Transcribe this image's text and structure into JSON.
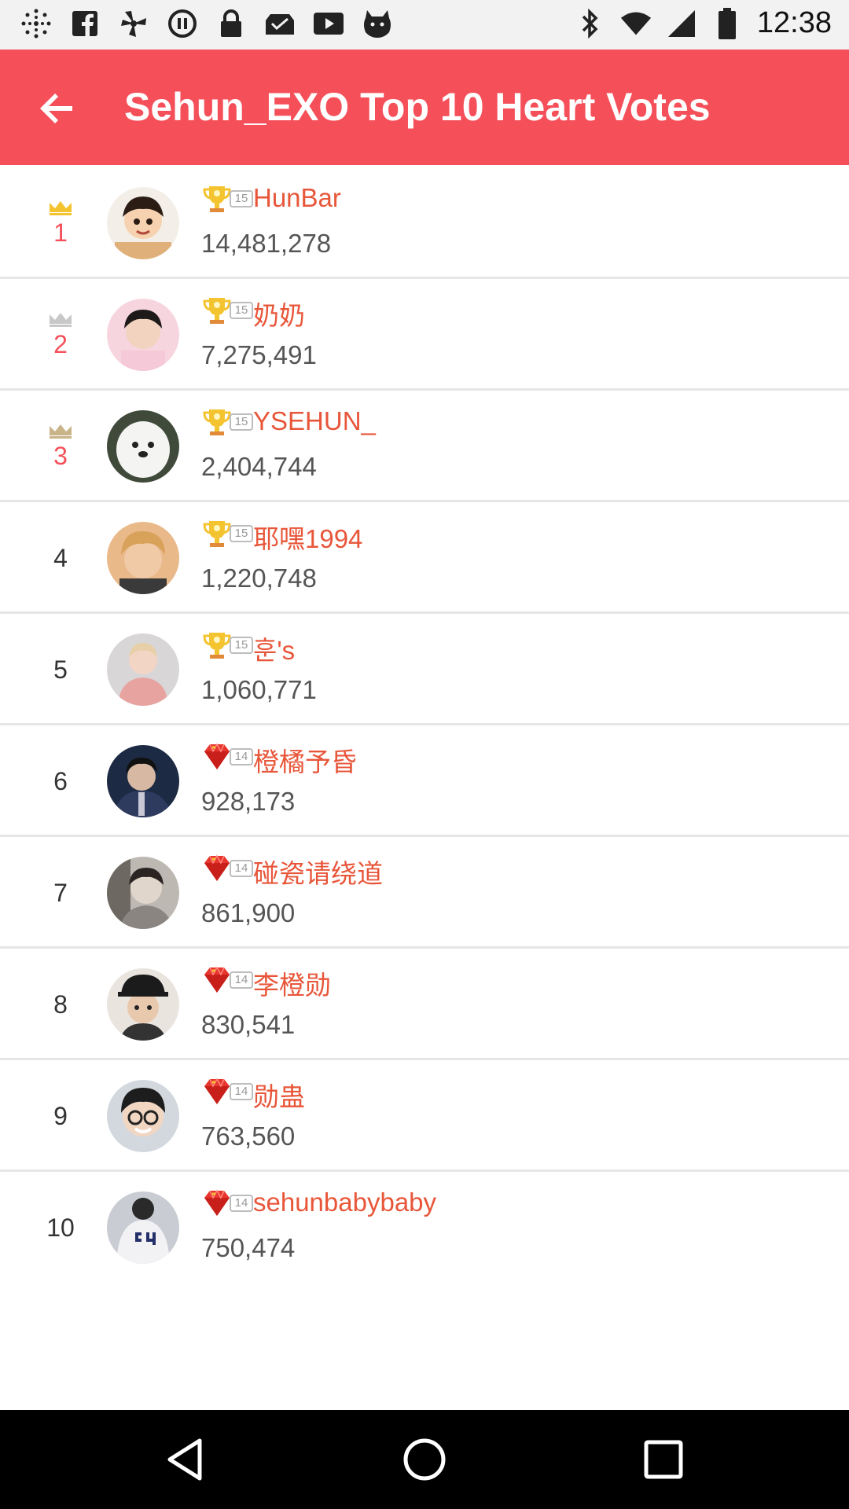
{
  "status_bar": {
    "time": "12:38",
    "left_icons": [
      "radial-icon",
      "facebook-icon",
      "fan-icon",
      "pause-icon",
      "lock-icon",
      "inbox-icon",
      "play-icon",
      "game-icon"
    ],
    "right_icons": [
      "bluetooth-icon",
      "wifi-icon",
      "signal-icon",
      "battery-icon"
    ]
  },
  "app_bar": {
    "title": "Sehun_EXO Top 10 Heart Votes",
    "back_icon": "back-arrow-icon",
    "background": "#f5505a"
  },
  "entries": [
    {
      "rank": "1",
      "level": "15",
      "badge": "trophy",
      "name": "HunBar",
      "votes": "14,481,278"
    },
    {
      "rank": "2",
      "level": "15",
      "badge": "trophy",
      "name": "奶奶",
      "votes": "7,275,491"
    },
    {
      "rank": "3",
      "level": "15",
      "badge": "trophy",
      "name": "YSEHUN_",
      "votes": "2,404,744"
    },
    {
      "rank": "4",
      "level": "15",
      "badge": "trophy",
      "name": "耶嘿1994",
      "votes": "1,220,748"
    },
    {
      "rank": "5",
      "level": "15",
      "badge": "trophy",
      "name": "훈's",
      "votes": "1,060,771"
    },
    {
      "rank": "6",
      "level": "14",
      "badge": "gem",
      "name": "橙橘予昏",
      "votes": "928,173"
    },
    {
      "rank": "7",
      "level": "14",
      "badge": "gem",
      "name": "碰瓷请绕道",
      "votes": "861,900"
    },
    {
      "rank": "8",
      "level": "14",
      "badge": "gem",
      "name": "李橙勋",
      "votes": "830,541"
    },
    {
      "rank": "9",
      "level": "14",
      "badge": "gem",
      "name": "勋蛊",
      "votes": "763,560"
    },
    {
      "rank": "10",
      "level": "14",
      "badge": "gem",
      "name": "sehunbabybaby",
      "votes": "750,474"
    }
  ],
  "colors": {
    "accent": "#f5505a",
    "username": "#e8563a",
    "crown_gold": "#f4c430",
    "crown_silver": "#c8c8c8",
    "crown_bronze": "#c9b48a"
  },
  "nav_bar": {
    "back": "nav-back-icon",
    "home": "nav-home-icon",
    "recents": "nav-recents-icon"
  }
}
